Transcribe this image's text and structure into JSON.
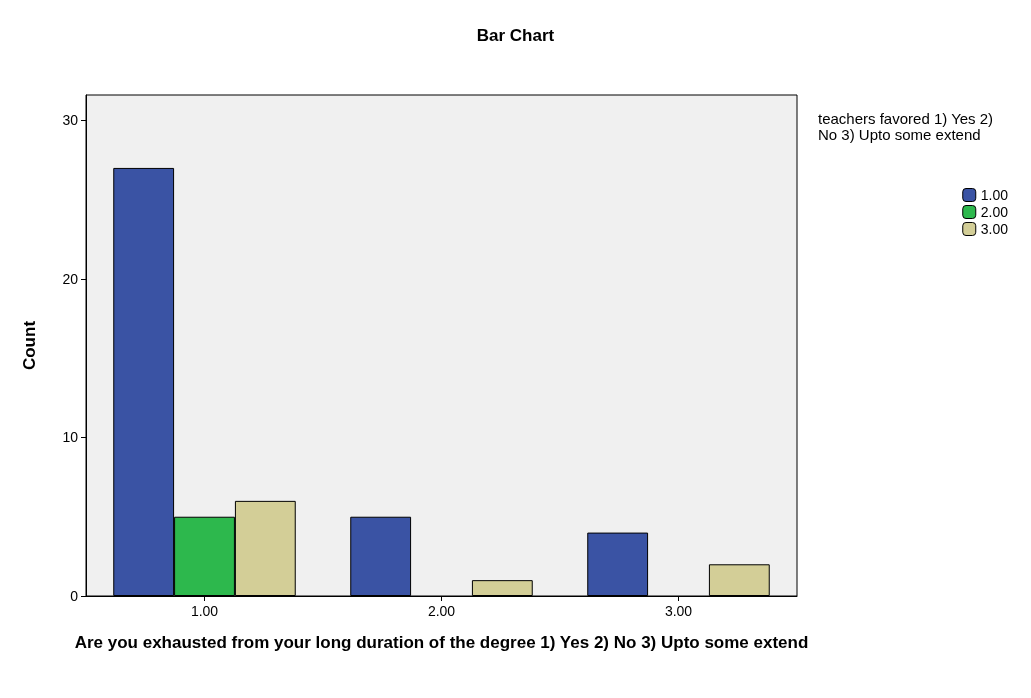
{
  "chart_data": {
    "type": "bar",
    "title": "Bar Chart",
    "xlabel": "Are you exhausted from your long duration of the degree 1) Yes 2) No 3) Upto some extend",
    "ylabel": "Count",
    "legend_title": "teachers favored 1) Yes 2) No 3) Upto some extend",
    "categories": [
      "1.00",
      "2.00",
      "3.00"
    ],
    "series": [
      {
        "name": "1.00",
        "color": "#3a53a4",
        "values": [
          27,
          5,
          4
        ]
      },
      {
        "name": "2.00",
        "color": "#2db84d",
        "values": [
          5,
          null,
          null
        ]
      },
      {
        "name": "3.00",
        "color": "#d3ce97",
        "values": [
          6,
          1,
          2
        ]
      }
    ],
    "ylim": [
      0,
      31.6
    ],
    "yticks": [
      0,
      10,
      20,
      30
    ],
    "grid": false,
    "legend": "right"
  }
}
